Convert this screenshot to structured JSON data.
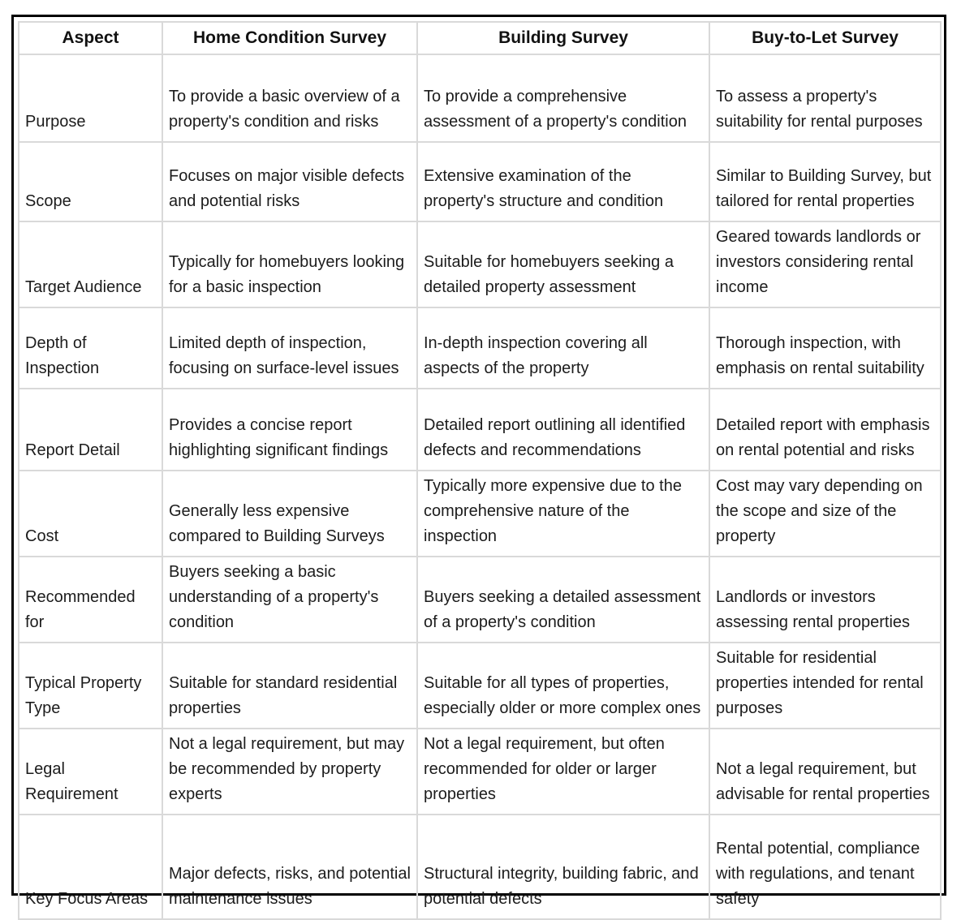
{
  "colors": {
    "frame_border": "#000000",
    "grid_border": "#d9d9d9",
    "text": "#1c1c1c",
    "background": "#ffffff"
  },
  "table": {
    "columns": [
      "Aspect",
      "Home Condition Survey",
      "Building Survey",
      "Buy-to-Let Survey"
    ],
    "rows": [
      [
        "Purpose",
        "To provide a basic overview of a property's condition and risks",
        "To provide a comprehensive assessment of a property's condition",
        "To assess a property's suitability for rental purposes"
      ],
      [
        "Scope",
        "Focuses on major visible defects and potential risks",
        "Extensive examination of the property's structure and condition",
        "Similar to Building Survey, but tailored for rental properties"
      ],
      [
        "Target Audience",
        "Typically for homebuyers looking for a basic inspection",
        "Suitable for homebuyers seeking a detailed property assessment",
        "Geared towards landlords or investors considering rental income"
      ],
      [
        "Depth of Inspection",
        "Limited depth of inspection, focusing on surface-level issues",
        "In-depth inspection covering all aspects of the property",
        "Thorough inspection, with emphasis on rental suitability"
      ],
      [
        "Report Detail",
        "Provides a concise report highlighting significant findings",
        "Detailed report outlining all identified defects and recommendations",
        "Detailed report with emphasis on rental potential and risks"
      ],
      [
        "Cost",
        "Generally less expensive compared to Building Surveys",
        "Typically more expensive due to the comprehensive nature of the inspection",
        "Cost may vary depending on the scope and size of the property"
      ],
      [
        "Recommended for",
        "Buyers seeking a basic understanding of a property's condition",
        "Buyers seeking a detailed assessment of a property's condition",
        "Landlords or investors assessing rental properties"
      ],
      [
        "Typical Property Type",
        "Suitable for standard residential properties",
        "Suitable for all types of properties, especially older or more complex ones",
        "Suitable for residential properties intended for rental purposes"
      ],
      [
        "Legal Requirement",
        "Not a legal requirement, but may be recommended by property experts",
        "Not a legal requirement, but often recommended for older or larger properties",
        "Not a legal requirement, but advisable for rental properties"
      ],
      [
        "Key Focus Areas",
        "Major defects, risks, and potential maintenance issues",
        "Structural integrity, building fabric, and potential defects",
        "Rental potential, compliance with regulations, and tenant safety"
      ]
    ]
  }
}
